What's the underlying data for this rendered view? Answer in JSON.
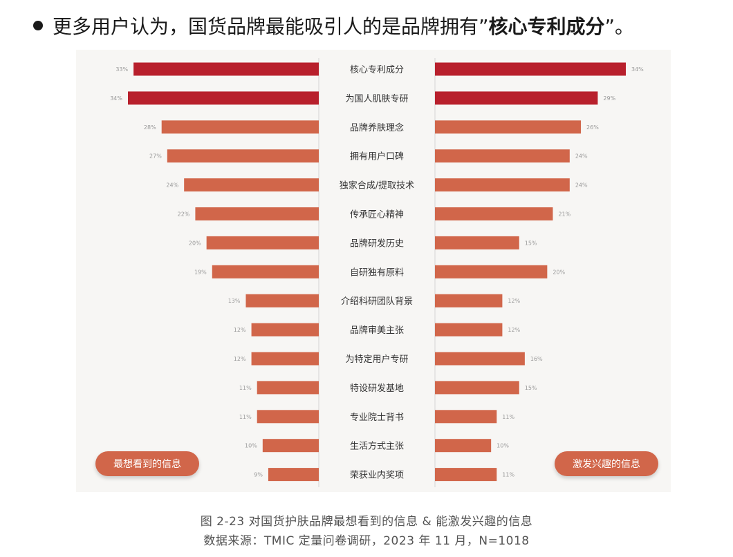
{
  "headline": {
    "prefix": "更多用户认为，国货品牌最能吸引人的是品牌拥有”",
    "emphasis": "核心专利成分",
    "suffix": "”。"
  },
  "colors": {
    "highlight": "#b8202c",
    "bar": "#d1664a",
    "pill": "#d1664a",
    "panel": "#f7f6f4",
    "divider": "#d4d4d4"
  },
  "chart_data": {
    "type": "bar",
    "layout": "butterfly",
    "categories": [
      "核心专利成分",
      "为国人肌肤专研",
      "品牌养肤理念",
      "拥有用户口碑",
      "独家合成/提取技术",
      "传承匠心精神",
      "品牌研发历史",
      "自研独有原料",
      "介绍科研团队背景",
      "品牌审美主张",
      "为特定用户专研",
      "特设研发基地",
      "专业院士背书",
      "生活方式主张",
      "荣获业内奖项"
    ],
    "series": [
      {
        "name": "最想看到的信息",
        "side": "left",
        "values": [
          33,
          34,
          28,
          27,
          24,
          22,
          20,
          19,
          13,
          12,
          12,
          11,
          11,
          10,
          9
        ],
        "labels": [
          "33%",
          "34%",
          "28%",
          "27%",
          "24%",
          "22%",
          "20%",
          "19%",
          "13%",
          "12%",
          "12%",
          "11%",
          "11%",
          "10%",
          "9%"
        ]
      },
      {
        "name": "激发兴趣的信息",
        "side": "right",
        "values": [
          34,
          29,
          26,
          24,
          24,
          21,
          15,
          20,
          12,
          12,
          16,
          15,
          11,
          10,
          11
        ],
        "labels": [
          "34%",
          "29%",
          "26%",
          "24%",
          "24%",
          "21%",
          "15%",
          "20%",
          "12%",
          "12%",
          "16%",
          "15%",
          "11%",
          "10%",
          "11%"
        ]
      }
    ],
    "highlight_count": 2,
    "xlim": [
      0,
      34
    ]
  },
  "captions": {
    "line1": "图 2-23  对国货护肤品牌最想看到的信息 & 能激发兴趣的信息",
    "line2": "数据来源：TMIC 定量问卷调研，2023 年 11 月，N=1018"
  }
}
